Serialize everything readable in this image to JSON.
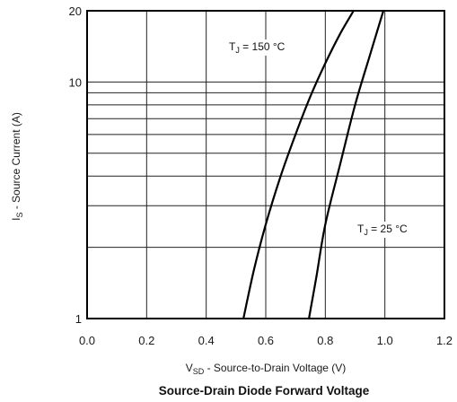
{
  "chart_data": {
    "type": "line",
    "title": "Source-Drain Diode Forward Voltage",
    "xlabel": {
      "prefix": "V",
      "sub": "SD",
      "rest": " - Source-to-Drain Voltage (V)"
    },
    "ylabel": {
      "prefix": "I",
      "sub": "S",
      "rest": " - Source Current (A)"
    },
    "xlim": [
      0.0,
      1.2
    ],
    "ylim": [
      1,
      20
    ],
    "yscale": "log",
    "grid": true,
    "x_ticks": [
      "0.0",
      "0.2",
      "0.4",
      "0.6",
      "0.8",
      "1.0",
      "1.2"
    ],
    "y_ticks": [
      "1",
      "10",
      "20"
    ],
    "series": [
      {
        "label_prefix": "T",
        "label_sub": "J",
        "label_rest": " = 150 °C",
        "x": [
          0.525,
          0.56,
          0.6,
          0.65,
          0.7,
          0.75,
          0.8,
          0.85,
          0.895
        ],
        "y": [
          1.0,
          1.6,
          2.5,
          4.0,
          6.0,
          8.7,
          12.0,
          16.0,
          20.0
        ]
      },
      {
        "label_prefix": "T",
        "label_sub": "J",
        "label_rest": " = 25 °C",
        "x": [
          0.745,
          0.77,
          0.8,
          0.85,
          0.9,
          0.95,
          0.995
        ],
        "y": [
          1.0,
          1.5,
          2.5,
          4.5,
          8.0,
          13.0,
          20.0
        ]
      }
    ]
  }
}
